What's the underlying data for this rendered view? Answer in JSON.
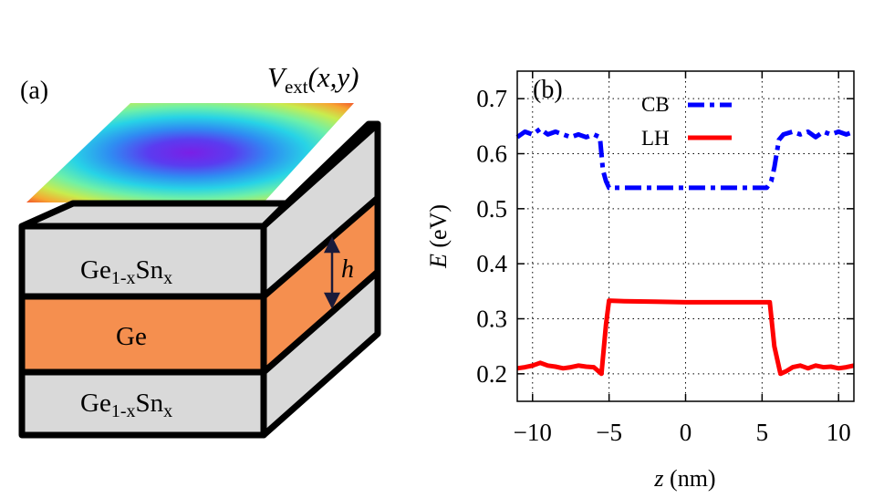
{
  "panel_a": {
    "label": "(a)",
    "potential_label": {
      "main": "V",
      "sub": "ext",
      "args": "(x,y)"
    },
    "height_label": "h",
    "layers": {
      "top": {
        "base": "Ge",
        "sub": "1-x",
        "mid": "Sn",
        "sub2": "x"
      },
      "middle": "Ge",
      "bottom": {
        "base": "Ge",
        "sub": "1-x",
        "mid": "Sn",
        "sub2": "x"
      }
    },
    "colors": {
      "alloy": "#d9d9d9",
      "ge": "#f58f4f",
      "outline": "#000000"
    }
  },
  "chart_data": {
    "type": "line",
    "panel_label": "(b)",
    "xlabel": "z (nm)",
    "xlabel_var": "z",
    "xlabel_unit": " (nm)",
    "ylabel": "E (eV)",
    "ylabel_var": "E",
    "ylabel_unit": " (eV)",
    "xlim": [
      -11,
      11
    ],
    "ylim": [
      0.15,
      0.75
    ],
    "xticks": [
      -10,
      -5,
      0,
      5,
      10
    ],
    "xtick_labels": [
      "−10",
      "−5",
      "0",
      "5",
      "10"
    ],
    "yticks": [
      0.2,
      0.3,
      0.4,
      0.5,
      0.6,
      0.7
    ],
    "ytick_labels": [
      "0.2",
      "0.3",
      "0.4",
      "0.5",
      "0.6",
      "0.7"
    ],
    "grid": true,
    "legend_position": "top",
    "series": [
      {
        "name": "CB",
        "color": "#0000ff",
        "dash": "dashdot",
        "x": [
          -11,
          -10.5,
          -10,
          -9.5,
          -9,
          -8.5,
          -8,
          -7.5,
          -7,
          -6.5,
          -6,
          -5.6,
          -5.4,
          -5.2,
          -5,
          -4,
          -2,
          0,
          2,
          4,
          5.3,
          5.6,
          5.8,
          6.1,
          6.4,
          7,
          7.5,
          8,
          8.5,
          9,
          9.5,
          10,
          10.5,
          11
        ],
        "y": [
          0.63,
          0.64,
          0.635,
          0.645,
          0.635,
          0.64,
          0.635,
          0.63,
          0.635,
          0.63,
          0.635,
          0.63,
          0.57,
          0.55,
          0.538,
          0.538,
          0.538,
          0.538,
          0.538,
          0.538,
          0.538,
          0.55,
          0.575,
          0.625,
          0.635,
          0.64,
          0.635,
          0.64,
          0.63,
          0.64,
          0.635,
          0.64,
          0.635,
          0.64
        ]
      },
      {
        "name": "LH",
        "color": "#ff0000",
        "dash": "solid",
        "x": [
          -11,
          -10.5,
          -10,
          -9.5,
          -9,
          -8.5,
          -8,
          -7.5,
          -7,
          -6.5,
          -6,
          -5.5,
          -5.2,
          -5,
          -4,
          -2,
          0,
          2,
          4,
          5.5,
          5.8,
          6.2,
          6.6,
          7,
          7.5,
          8,
          8.5,
          9,
          9.5,
          10,
          10.5,
          11
        ],
        "y": [
          0.21,
          0.212,
          0.215,
          0.22,
          0.215,
          0.213,
          0.21,
          0.212,
          0.215,
          0.213,
          0.212,
          0.2,
          0.29,
          0.333,
          0.332,
          0.331,
          0.33,
          0.33,
          0.33,
          0.33,
          0.25,
          0.2,
          0.205,
          0.212,
          0.215,
          0.21,
          0.215,
          0.212,
          0.213,
          0.21,
          0.212,
          0.215
        ]
      }
    ]
  }
}
